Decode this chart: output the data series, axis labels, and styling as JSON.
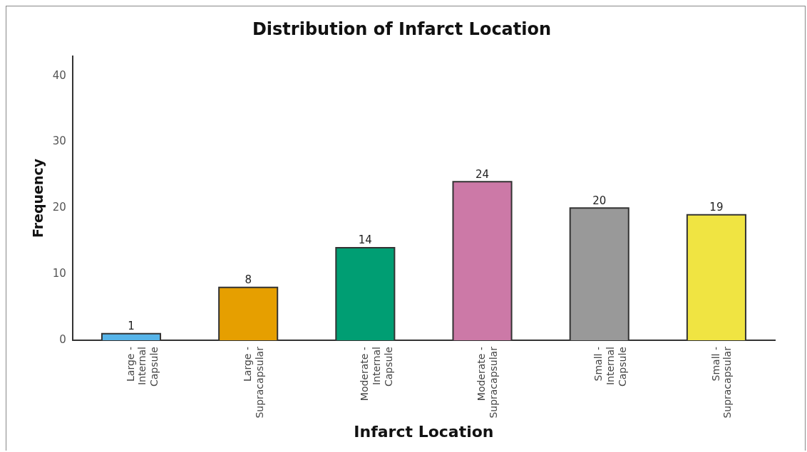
{
  "chart_data": {
    "type": "bar",
    "title": "Distribution of Infarct Location",
    "xlabel": "Infarct Location",
    "ylabel": "Frequency",
    "categories": [
      "Large - Internal Capsule",
      "Large - Supracapsular",
      "Moderate - Internal Capsule",
      "Moderate - Supracapsular",
      "Small - Internal Capsule",
      "Small - Supracapsular"
    ],
    "values": [
      1,
      8,
      14,
      24,
      20,
      19
    ],
    "colors": [
      "#56b4e9",
      "#e69f00",
      "#009e73",
      "#cc79a7",
      "#999999",
      "#f0e442"
    ],
    "ylim": [
      0,
      43
    ],
    "yticks": [
      0,
      10,
      20,
      30,
      40
    ],
    "grid": false,
    "legend": false,
    "data_labels": true
  }
}
